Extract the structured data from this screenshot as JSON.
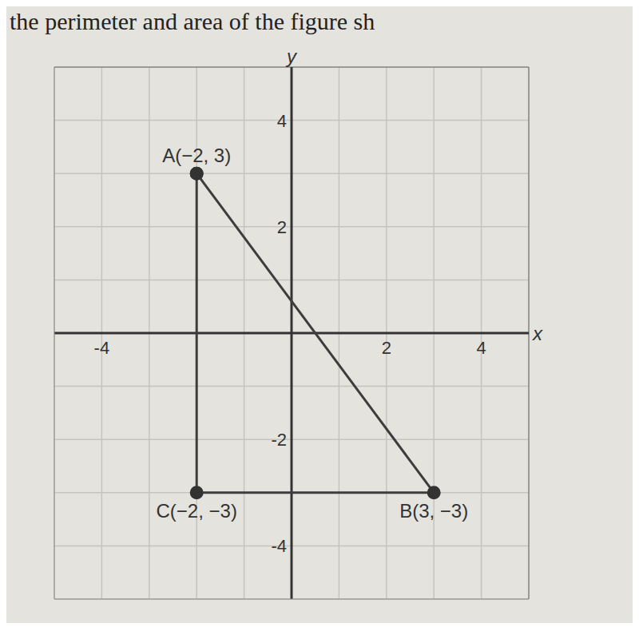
{
  "chart_data": {
    "type": "line",
    "title": "the perimeter and area of the figure sh",
    "x_label": "x",
    "y_label": "y",
    "x": [
      -2,
      3,
      -2,
      -2
    ],
    "values": [
      3,
      -3,
      -3,
      3
    ],
    "color": "#3d3d3d",
    "marker": "circle",
    "line_style": "solid",
    "annotations": [
      {
        "text": "A(−2, 3)",
        "x": -2,
        "y": 3
      },
      {
        "text": "C(−2, −3)",
        "x": -2,
        "y": -3
      },
      {
        "text": "B(3, −3)",
        "x": 3,
        "y": -3
      }
    ],
    "xlim": [
      -5,
      5
    ],
    "ylim": [
      -5,
      5
    ],
    "xticks": [
      -4,
      2,
      4
    ],
    "yticks": [
      -4,
      -2,
      2,
      4
    ],
    "grid": true
  }
}
